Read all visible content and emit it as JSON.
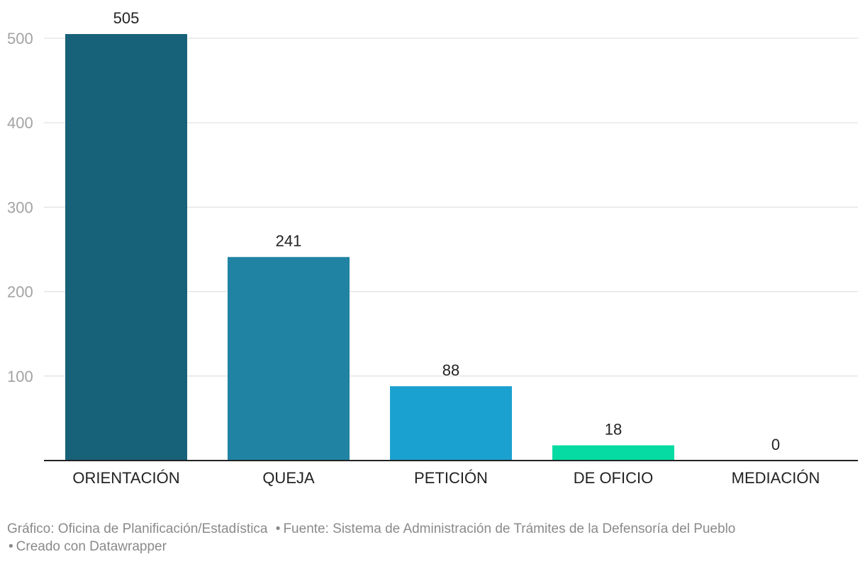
{
  "chart_data": {
    "type": "bar",
    "categories": [
      "ORIENTACIÓN",
      "QUEJA",
      "PETICIÓN",
      "DE OFICIO",
      "MEDIACIÓN"
    ],
    "values": [
      505,
      241,
      88,
      18,
      0
    ],
    "value_labels": [
      "505",
      "241",
      "88",
      "18",
      "0"
    ],
    "colors": [
      "#176179",
      "#2183a3",
      "#1ba1cf",
      "#05dba3",
      "#05dba3"
    ],
    "yticks": [
      100,
      200,
      300,
      400,
      500
    ],
    "ylim": [
      0,
      500
    ],
    "grid": true,
    "legend": "none",
    "title": "",
    "xlabel": "",
    "ylabel": ""
  },
  "footer": {
    "credit": "Gráfico: Oficina de Planificación/Estadística",
    "source": "Fuente: Sistema de Administración de Trámites de la Defensoría del Pueblo",
    "made_with": "Creado con Datawrapper"
  }
}
